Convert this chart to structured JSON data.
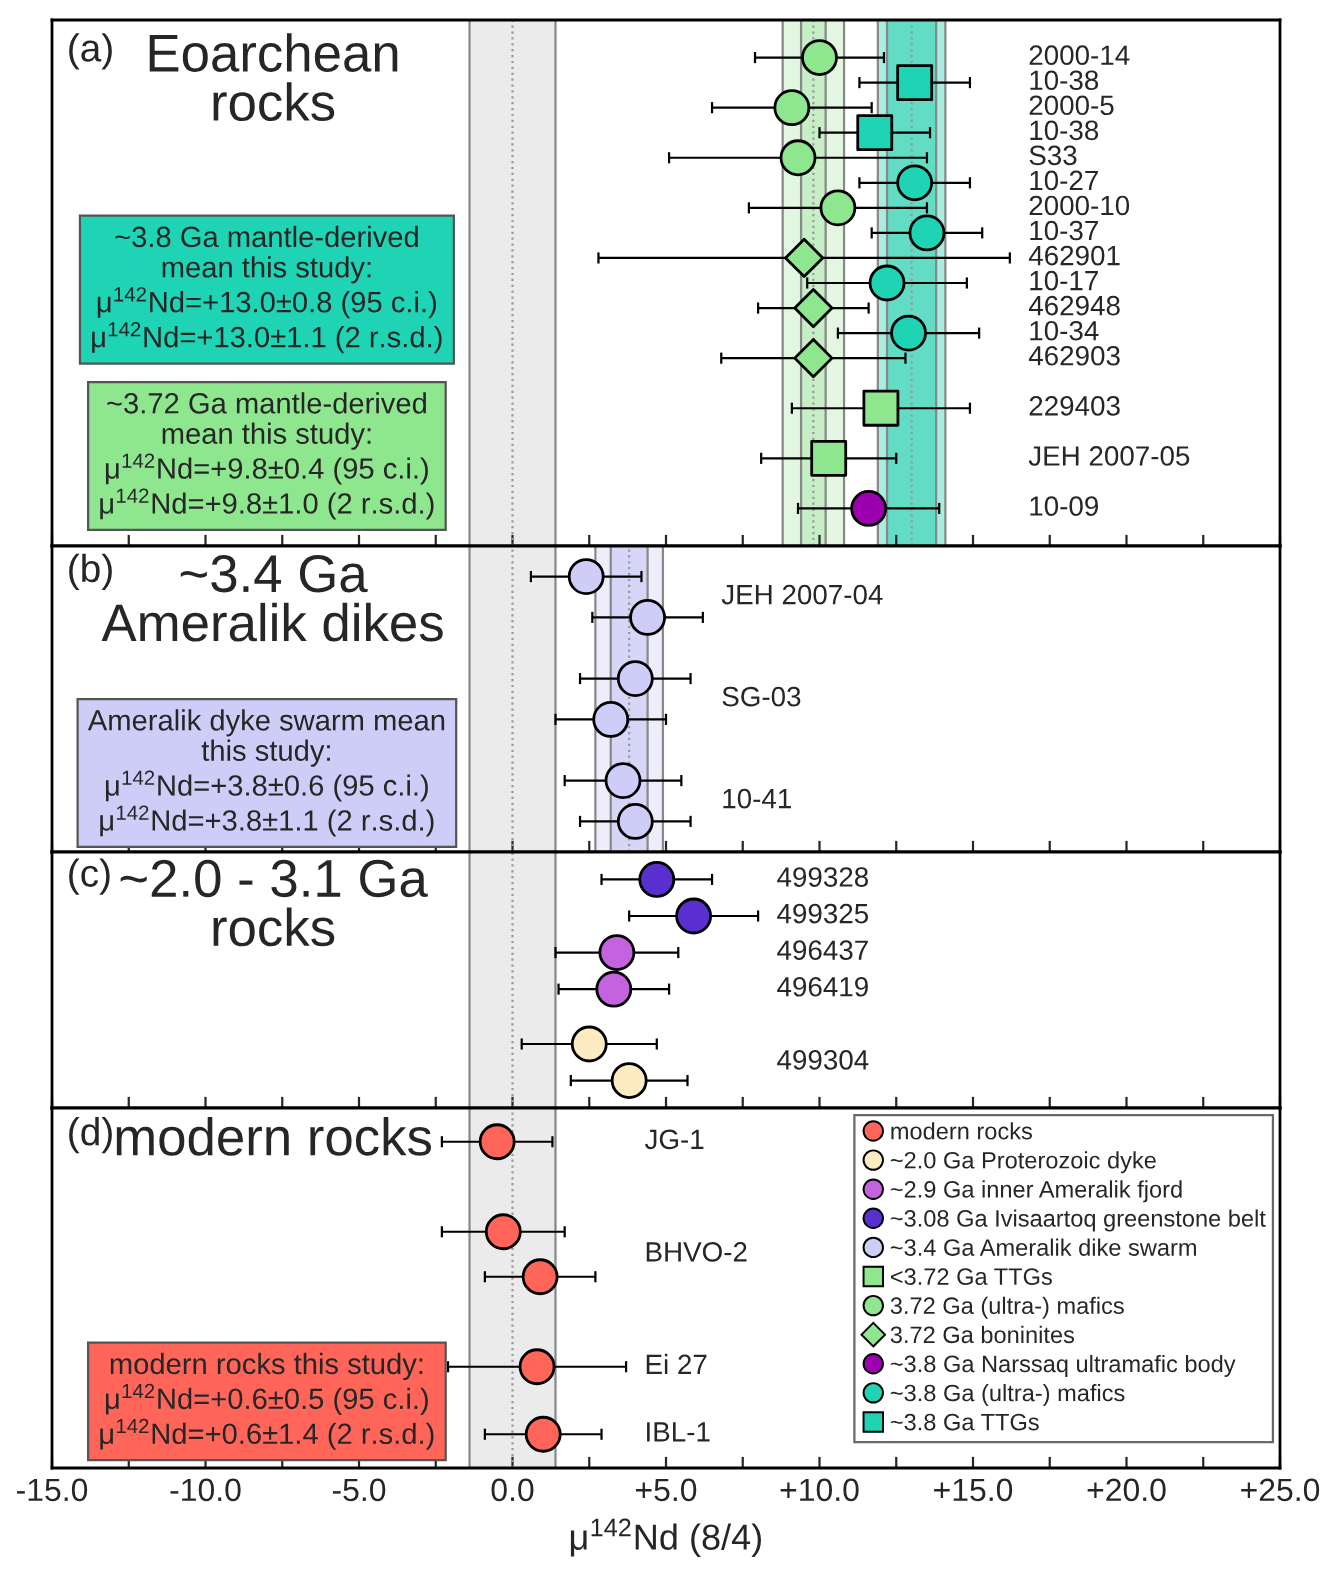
{
  "chart_data": [
    {
      "type": "scatter",
      "orientation": "horizontal",
      "title": "Eoarchean\nrocks",
      "annotations": [
        "(a)"
      ],
      "legend": "bottom right",
      "categories": [
        "2000-14",
        "10-38",
        "2000-5",
        "10-38",
        "S33",
        "10-27",
        "2000-10",
        "10-37",
        "462901",
        "10-17",
        "462948",
        "10-34",
        "462903",
        null,
        "229403",
        null,
        "JEH 2007-05",
        null,
        "10-09"
      ],
      "series": [
        {
          "name": "~3.8 Ga TTGs",
          "color": "#1fd3b5",
          "marker": "square",
          "values": [
            null,
            13.1,
            null,
            11.8,
            null,
            null,
            null,
            null,
            null,
            null,
            null,
            null,
            null,
            null,
            null,
            null,
            null,
            null,
            null
          ],
          "errors": [
            null,
            1.8,
            null,
            1.8,
            null,
            null,
            null,
            null,
            null,
            null,
            null,
            null,
            null,
            null,
            null,
            null,
            null,
            null,
            null
          ]
        },
        {
          "name": "~3.8 Ga (ultra-) mafics",
          "color": "#1fd3b5",
          "marker": "circle",
          "values": [
            null,
            null,
            null,
            null,
            null,
            13.1,
            null,
            13.5,
            null,
            12.2,
            null,
            12.9,
            null,
            null,
            null,
            null,
            null,
            null,
            null
          ],
          "errors": [
            null,
            null,
            null,
            null,
            null,
            1.8,
            null,
            1.8,
            null,
            2.6,
            null,
            2.3,
            null,
            null,
            null,
            null,
            null,
            null,
            null
          ]
        },
        {
          "name": "~3.8 Ga Narssaq ultramafic body",
          "color": "#9c00b0",
          "marker": "circle",
          "values": [
            null,
            null,
            null,
            null,
            null,
            null,
            null,
            null,
            null,
            null,
            null,
            null,
            null,
            null,
            null,
            null,
            null,
            null,
            11.6
          ],
          "errors": [
            null,
            null,
            null,
            null,
            null,
            null,
            null,
            null,
            null,
            null,
            null,
            null,
            null,
            null,
            null,
            null,
            null,
            null,
            2.3
          ]
        },
        {
          "name": "3.72 Ga boninites",
          "color": "#8ee68e",
          "marker": "diamond",
          "values": [
            null,
            null,
            null,
            null,
            null,
            null,
            null,
            null,
            9.5,
            null,
            9.8,
            null,
            9.8,
            null,
            null,
            null,
            null,
            null,
            null
          ],
          "errors": [
            null,
            null,
            null,
            null,
            null,
            null,
            null,
            null,
            6.7,
            null,
            1.8,
            null,
            3.0,
            null,
            null,
            null,
            null,
            null,
            null
          ]
        },
        {
          "name": "3.72 Ga (ultra-) mafics",
          "color": "#8ee68e",
          "marker": "circle",
          "values": [
            10.0,
            null,
            9.1,
            null,
            9.3,
            null,
            10.6,
            null,
            null,
            null,
            null,
            null,
            null,
            null,
            null,
            null,
            null,
            null,
            null
          ],
          "errors": [
            2.1,
            null,
            2.6,
            null,
            4.2,
            null,
            2.9,
            null,
            null,
            null,
            null,
            null,
            null,
            null,
            null,
            null,
            null,
            null,
            null
          ]
        },
        {
          "name": "<3.72 Ga TTGs",
          "color": "#8ee68e",
          "marker": "square",
          "values": [
            null,
            null,
            null,
            null,
            null,
            null,
            null,
            null,
            null,
            null,
            null,
            null,
            null,
            null,
            12.0,
            null,
            10.3,
            null,
            null
          ],
          "errors": [
            null,
            null,
            null,
            null,
            null,
            null,
            null,
            null,
            null,
            null,
            null,
            null,
            null,
            null,
            2.9,
            null,
            2.2,
            null,
            null
          ]
        }
      ],
      "bands": [
        {
          "axis": "x",
          "from": -1.4,
          "to": 1.4,
          "color": "#ebebeb"
        },
        {
          "axis": "x",
          "from": 8.8,
          "to": 10.8,
          "color": "#e2f6e2",
          "label": "~3.72 Ga mantle-derived\nmean this study:\nμ$^{142}$Nd=+9.8±0.4 (95 c.i.)\nμ$^{142}$Nd=+9.8±1.0 (2 r.s.d.)"
        },
        {
          "axis": "x",
          "from": 9.4,
          "to": 10.2,
          "color": "#c6efc6"
        },
        {
          "axis": "x",
          "from": 11.9,
          "to": 14.1,
          "color": "#a9ece0",
          "label": "~3.8 Ga mantle-derived\nmean this study:\nμ$^{142}$Nd=+13.0±0.8 (95 c.i.)\nμ$^{142}$Nd=+13.0±1.1 (2 r.s.d.)"
        },
        {
          "axis": "x",
          "from": 12.2,
          "to": 13.8,
          "color": "#62dcc5"
        }
      ],
      "ref_lines": [
        {
          "axis": "x",
          "value": 0,
          "line_style": "dotted",
          "color": "#999999"
        },
        {
          "axis": "x",
          "value": 9.8,
          "line_style": "dotted",
          "color": "#999999"
        },
        {
          "axis": "x",
          "value": 13.0,
          "line_style": "dotted",
          "color": "#999999"
        }
      ],
      "xlim": [
        -15,
        25
      ],
      "xticks": [
        {
          "value": -15,
          "label": null
        },
        {
          "value": -12.5,
          "label": null
        },
        {
          "value": -10,
          "label": null
        },
        {
          "value": -7.5,
          "label": null
        },
        {
          "value": -5,
          "label": null
        },
        {
          "value": -2.5,
          "label": null
        },
        {
          "value": 0,
          "label": null
        },
        {
          "value": 2.5,
          "label": null
        },
        {
          "value": 5,
          "label": null
        },
        {
          "value": 7.5,
          "label": null
        },
        {
          "value": 10,
          "label": null
        },
        {
          "value": 12.5,
          "label": null
        },
        {
          "value": 15,
          "label": null
        },
        {
          "value": 17.5,
          "label": null
        },
        {
          "value": 20,
          "label": null
        },
        {
          "value": 22.5,
          "label": null
        },
        {
          "value": 25,
          "label": null
        }
      ],
      "tick_labels": false
    },
    {
      "type": "scatter",
      "orientation": "horizontal",
      "title": "~3.4 Ga\nAmeralik dikes",
      "annotations": [
        "(b)"
      ],
      "legend": "bottom right",
      "categories": [
        null,
        "JEH 2007-04",
        null,
        null,
        null,
        null,
        "SG-03",
        null,
        null,
        null,
        null,
        "10-41",
        null
      ],
      "series": [
        {
          "name": "~3.4 Ga Ameralik dike swarm",
          "color": "#cdcdf7",
          "marker": "circle",
          "values": [
            2.4,
            null,
            4.4,
            null,
            null,
            4.0,
            null,
            3.2,
            null,
            null,
            3.6,
            null,
            4.0
          ],
          "errors": [
            1.8,
            null,
            1.8,
            null,
            null,
            1.8,
            null,
            1.8,
            null,
            null,
            1.9,
            null,
            1.8
          ]
        }
      ],
      "bands": [
        {
          "axis": "x",
          "from": -1.4,
          "to": 1.4,
          "color": "#ebebeb"
        },
        {
          "axis": "x",
          "from": 2.7,
          "to": 4.9,
          "color": "#ededfc",
          "label": "Ameralik dyke swarm mean\nthis study:\nμ$^{142}$Nd=+3.8±0.6 (95 c.i.)\nμ$^{142}$Nd=+3.8±1.1 (2 r.s.d.)"
        },
        {
          "axis": "x",
          "from": 3.2,
          "to": 4.4,
          "color": "#d6d6f8"
        }
      ],
      "ref_lines": [
        {
          "axis": "x",
          "value": 0,
          "line_style": "dotted",
          "color": "#999999"
        },
        {
          "axis": "x",
          "value": 3.8,
          "line_style": "dotted",
          "color": "#999999"
        }
      ],
      "xlim": [
        -15,
        25
      ],
      "xticks": [
        {
          "value": -15,
          "label": null
        },
        {
          "value": -12.5,
          "label": null
        },
        {
          "value": -10,
          "label": null
        },
        {
          "value": -7.5,
          "label": null
        },
        {
          "value": -5,
          "label": null
        },
        {
          "value": -2.5,
          "label": null
        },
        {
          "value": 0,
          "label": null
        },
        {
          "value": 2.5,
          "label": null
        },
        {
          "value": 5,
          "label": null
        },
        {
          "value": 7.5,
          "label": null
        },
        {
          "value": 10,
          "label": null
        },
        {
          "value": 12.5,
          "label": null
        },
        {
          "value": 15,
          "label": null
        },
        {
          "value": 17.5,
          "label": null
        },
        {
          "value": 20,
          "label": null
        },
        {
          "value": 22.5,
          "label": null
        },
        {
          "value": 25,
          "label": null
        }
      ],
      "tick_labels": false
    },
    {
      "type": "scatter",
      "orientation": "horizontal",
      "title": "~2.0 - 3.1 Ga\nrocks",
      "annotations": [
        "(c)"
      ],
      "legend": "bottom right",
      "categories": [
        "499328",
        null,
        "499325",
        null,
        "496437",
        null,
        "496419",
        null,
        null,
        null,
        "499304",
        null
      ],
      "series": [
        {
          "name": "~3.08 Ga Ivisaartoq greenstone belt",
          "color": "#5a2fd0",
          "marker": "circle",
          "values": [
            4.7,
            null,
            5.9,
            null,
            null,
            null,
            null,
            null,
            null,
            null,
            null,
            null
          ],
          "errors": [
            1.8,
            null,
            2.1,
            null,
            null,
            null,
            null,
            null,
            null,
            null,
            null,
            null
          ]
        },
        {
          "name": "~2.9 Ga inner Ameralik fjord",
          "color": "#c462e0",
          "marker": "circle",
          "values": [
            null,
            null,
            null,
            null,
            3.4,
            null,
            3.3,
            null,
            null,
            null,
            null,
            null
          ],
          "errors": [
            null,
            null,
            null,
            null,
            2.0,
            null,
            1.8,
            null,
            null,
            null,
            null,
            null
          ]
        },
        {
          "name": "~2.0 Ga Proterozoic dyke",
          "color": "#fdecc2",
          "marker": "circle",
          "values": [
            null,
            null,
            null,
            null,
            null,
            null,
            null,
            null,
            null,
            2.5,
            null,
            3.8
          ],
          "errors": [
            null,
            null,
            null,
            null,
            null,
            null,
            null,
            null,
            null,
            2.2,
            null,
            1.9
          ]
        }
      ],
      "bands": [
        {
          "axis": "x",
          "from": -1.4,
          "to": 1.4,
          "color": "#ebebeb"
        }
      ],
      "ref_lines": [
        {
          "axis": "x",
          "value": 0,
          "line_style": "dotted",
          "color": "#999999"
        }
      ],
      "xlim": [
        -15,
        25
      ],
      "xticks": [
        {
          "value": -15,
          "label": null
        },
        {
          "value": -12.5,
          "label": null
        },
        {
          "value": -10,
          "label": null
        },
        {
          "value": -7.5,
          "label": null
        },
        {
          "value": -5,
          "label": null
        },
        {
          "value": -2.5,
          "label": null
        },
        {
          "value": 0,
          "label": null
        },
        {
          "value": 2.5,
          "label": null
        },
        {
          "value": 5,
          "label": null
        },
        {
          "value": 7.5,
          "label": null
        },
        {
          "value": 10,
          "label": null
        },
        {
          "value": 12.5,
          "label": null
        },
        {
          "value": 15,
          "label": null
        },
        {
          "value": 17.5,
          "label": null
        },
        {
          "value": 20,
          "label": null
        },
        {
          "value": 22.5,
          "label": null
        },
        {
          "value": 25,
          "label": null
        }
      ],
      "tick_labels": false
    },
    {
      "type": "scatter",
      "orientation": "horizontal",
      "title": "modern rocks",
      "annotations": [
        "(d)"
      ],
      "xlabel": "μ$^{142}$Nd (8/4)",
      "legend": "top right",
      "categories": [
        "JG-1",
        null,
        null,
        null,
        null,
        "BHVO-2",
        null,
        null,
        null,
        null,
        "Ei 27",
        null,
        null,
        "IBL-1"
      ],
      "series": [
        {
          "name": "modern rocks",
          "color": "#ff6659",
          "marker": "circle",
          "values": [
            -0.5,
            null,
            null,
            null,
            -0.3,
            null,
            0.9,
            null,
            null,
            null,
            0.8,
            null,
            null,
            1.0
          ],
          "errors": [
            1.8,
            null,
            null,
            null,
            2.0,
            null,
            1.8,
            null,
            null,
            null,
            2.9,
            null,
            null,
            1.9
          ]
        }
      ],
      "bands": [
        {
          "axis": "x",
          "from": -1.4,
          "to": 1.4,
          "color": "#ebebeb",
          "label": "modern rocks this study:\nμ$^{142}$Nd=+0.6±0.5 (95 c.i.)\nμ$^{142}$Nd=+0.6±1.4 (2 r.s.d.)"
        }
      ],
      "ref_lines": [
        {
          "axis": "x",
          "value": 0,
          "line_style": "dotted",
          "color": "#999999"
        }
      ],
      "xlim": [
        -15,
        25
      ],
      "xticks": [
        {
          "value": -15,
          "label": "-15.0"
        },
        {
          "value": -12.5,
          "label": null
        },
        {
          "value": -10,
          "label": "-10.0"
        },
        {
          "value": -7.5,
          "label": null
        },
        {
          "value": -5,
          "label": "-5.0"
        },
        {
          "value": -2.5,
          "label": null
        },
        {
          "value": 0,
          "label": "0.0"
        },
        {
          "value": 2.5,
          "label": null
        },
        {
          "value": 5,
          "label": "+5.0"
        },
        {
          "value": 7.5,
          "label": null
        },
        {
          "value": 10,
          "label": "+10.0"
        },
        {
          "value": 12.5,
          "label": null
        },
        {
          "value": 15,
          "label": "+15.0"
        },
        {
          "value": 17.5,
          "label": null
        },
        {
          "value": 20,
          "label": "+20.0"
        },
        {
          "value": 22.5,
          "label": null
        },
        {
          "value": 25,
          "label": "+25.0"
        }
      ],
      "tick_labels": "x"
    }
  ]
}
